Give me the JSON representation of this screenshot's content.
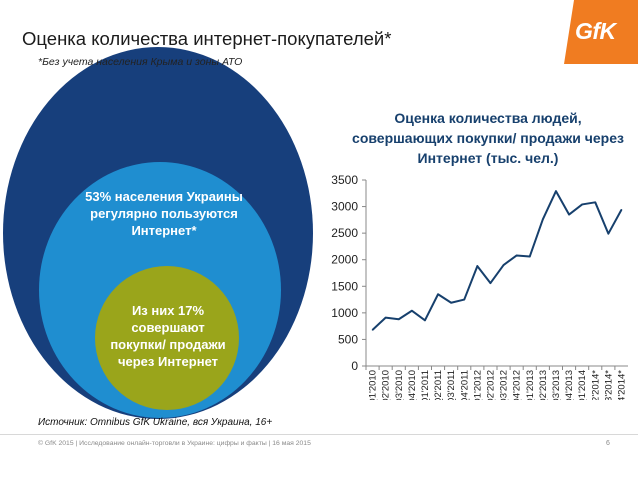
{
  "slide": {
    "title": "Оценка количества интернет-покупателей*",
    "subtitle": "*Без учета населения Крыма и зоны АТО",
    "logo_text": "GfK",
    "outer_circle_text": "53% населения Украины регулярно пользуются Интернет*",
    "inner_circle_text": "Из них 17% совершают покупки/ продажи через Интернет",
    "source": "Источник: Omnibus GfK Ukraine, вся Украина, 16+",
    "footer_left": "© GfK 2015 | Исследование онлайн-торговли в Украине: цифры и факты | 16 мая 2015",
    "footer_page": "6"
  },
  "colors": {
    "outer_circle": "#173f7c",
    "middle_circle": "#1f8ed0",
    "inner_circle": "#9aa51b",
    "logo": "#f07c21",
    "line": "#17406d"
  },
  "chart_data": {
    "type": "line",
    "title": "Оценка количества людей, совершающих покупки/ продажи через Интернет (тыс. чел.)",
    "xlabel": "",
    "ylabel": "",
    "ylim": [
      0,
      3500
    ],
    "yticks": [
      0,
      500,
      1000,
      1500,
      2000,
      2500,
      3000,
      3500
    ],
    "grid": false,
    "categories": [
      "Q1'2010",
      "Q2'2010",
      "Q3'2010",
      "Q4'2010",
      "Q1'2011",
      "Q2'2011",
      "Q3'2011",
      "Q4'2011",
      "Q1'2012",
      "Q2'2012",
      "Q3'2012",
      "Q4'2012",
      "Q1'2013",
      "Q2'2013",
      "Q3'2013",
      "Q4'2013",
      "Q1'2014",
      "Q2'2014*",
      "Q3'2014*",
      "Q4'2014*"
    ],
    "series": [
      {
        "values": [
          680,
          910,
          880,
          1040,
          860,
          1350,
          1190,
          1250,
          1880,
          1560,
          1900,
          2080,
          2060,
          2760,
          3290,
          2850,
          3040,
          3080,
          2490,
          2940
        ]
      }
    ]
  }
}
